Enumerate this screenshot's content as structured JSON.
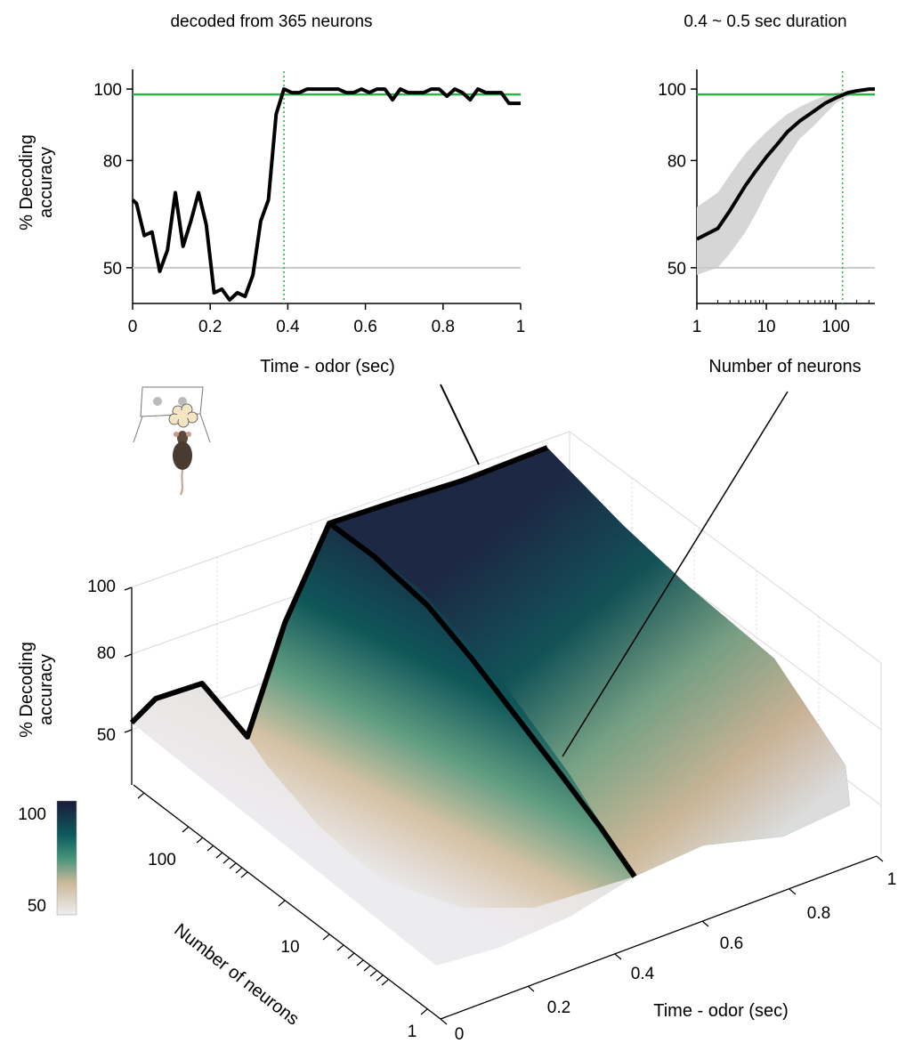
{
  "chart_data": [
    {
      "type": "line",
      "title": "decoded from 365 neurons",
      "xlabel": "Time - odor (sec)",
      "ylabel_line1": "% Decoding",
      "ylabel_line2": "accuracy",
      "xlim": [
        0,
        1
      ],
      "ylim": [
        40,
        105
      ],
      "x_ticks": [
        "0",
        "0.2",
        "0.4",
        "0.6",
        "0.8",
        "1"
      ],
      "y_ticks": [
        "50",
        "80",
        "100"
      ],
      "reference_lines": {
        "chance": 50,
        "threshold": 98.5,
        "threshold_time": 0.39
      },
      "colors": {
        "line": "#000000",
        "chance": "#c8c8c8",
        "threshold": "#2fb34a"
      },
      "series": [
        {
          "x": [
            0,
            0.01,
            0.03,
            0.05,
            0.07,
            0.09,
            0.11,
            0.13,
            0.15,
            0.17,
            0.19,
            0.21,
            0.23,
            0.25,
            0.27,
            0.29,
            0.31,
            0.33,
            0.35,
            0.37,
            0.39,
            0.41,
            0.43,
            0.45,
            0.47,
            0.49,
            0.51,
            0.53,
            0.55,
            0.57,
            0.59,
            0.61,
            0.63,
            0.65,
            0.67,
            0.69,
            0.71,
            0.73,
            0.75,
            0.77,
            0.79,
            0.81,
            0.83,
            0.85,
            0.87,
            0.89,
            0.91,
            0.93,
            0.95,
            0.97,
            0.99,
            1.0
          ],
          "y": [
            69,
            68,
            59,
            60,
            49,
            55,
            71,
            56,
            63,
            71,
            62,
            43,
            44,
            41,
            43,
            42,
            48,
            63,
            69,
            93,
            100,
            99,
            99,
            100,
            100,
            100,
            100,
            100,
            99,
            99,
            100,
            99,
            100,
            100,
            97,
            100,
            99,
            99,
            99,
            100,
            100,
            98,
            100,
            99,
            97,
            100,
            99,
            99,
            99,
            96,
            96,
            96
          ]
        }
      ]
    },
    {
      "type": "line",
      "title": "0.4 ~ 0.5 sec duration",
      "xlabel": "Number of neurons",
      "xscale": "log",
      "xlim": [
        1,
        365
      ],
      "ylim": [
        40,
        105
      ],
      "x_ticks": [
        "1",
        "10",
        "100"
      ],
      "y_ticks": [
        "50",
        "80",
        "100"
      ],
      "reference_lines": {
        "chance": 50,
        "threshold": 98.5,
        "threshold_neurons": 125
      },
      "colors": {
        "line": "#000000",
        "band": "#d6d6d6",
        "chance": "#c8c8c8",
        "threshold": "#2fb34a"
      },
      "series": [
        {
          "x": [
            1,
            2,
            3,
            5,
            7,
            10,
            15,
            20,
            30,
            50,
            70,
            100,
            150,
            200,
            300,
            365
          ],
          "y": [
            58,
            61,
            66,
            73,
            77,
            81,
            85,
            88,
            91,
            94,
            96,
            97.5,
            99,
            99.5,
            100,
            100
          ],
          "band_low": [
            48,
            50,
            54,
            60,
            65,
            71,
            77,
            81,
            86,
            90,
            93,
            96,
            98,
            99,
            99.5,
            100
          ],
          "band_high": [
            67,
            71,
            76,
            82,
            85,
            88,
            91,
            93,
            95,
            97,
            98,
            99,
            99.5,
            100,
            100,
            100
          ]
        }
      ]
    },
    {
      "type": "surface",
      "zlabel_line1": "% Decoding",
      "zlabel_line2": "accuracy",
      "xlabel": "Time - odor (sec)",
      "ylabel": "Number of neurons",
      "x_ticks": [
        "0",
        "0.2",
        "0.4",
        "0.6",
        "0.8",
        "1"
      ],
      "y_ticks": [
        "1",
        "10",
        "100"
      ],
      "z_ticks": [
        "50",
        "80",
        "100"
      ],
      "colorbar": {
        "ticks": [
          "100",
          "50"
        ],
        "range": [
          50,
          100
        ],
        "colors": [
          "#1a1b3a",
          "#0d5a5e",
          "#43947a",
          "#cdb89a",
          "#ededf0"
        ]
      }
    }
  ]
}
